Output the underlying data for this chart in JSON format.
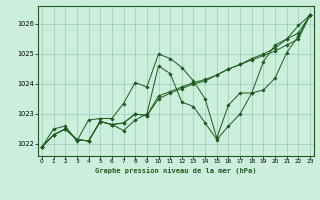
{
  "title": "Graphe pression niveau de la mer (hPa)",
  "background_color": "#cceedd",
  "grid_color": "#99ccbb",
  "line_color": "#1a5c1a",
  "x_ticks": [
    0,
    1,
    2,
    3,
    4,
    5,
    6,
    7,
    8,
    9,
    10,
    11,
    12,
    13,
    14,
    15,
    16,
    17,
    18,
    19,
    20,
    21,
    22,
    23
  ],
  "y_ticks": [
    1022,
    1023,
    1024,
    1025,
    1026
  ],
  "ylim": [
    1021.6,
    1026.6
  ],
  "xlim": [
    -0.3,
    23.3
  ],
  "series": [
    [
      1021.9,
      1022.5,
      1022.6,
      1022.1,
      1022.8,
      1022.85,
      1022.85,
      1023.35,
      1024.05,
      1023.9,
      1025.0,
      1024.85,
      1024.55,
      1024.1,
      1023.5,
      1022.2,
      1023.3,
      1023.7,
      1023.7,
      1024.75,
      1025.3,
      1025.5,
      1025.95,
      1026.3
    ],
    [
      1021.9,
      1022.3,
      1022.5,
      1022.15,
      1022.1,
      1022.75,
      1022.65,
      1022.7,
      1023.0,
      1022.95,
      1023.5,
      1023.7,
      1023.85,
      1024.0,
      1024.1,
      1024.3,
      1024.5,
      1024.65,
      1024.8,
      1024.95,
      1025.1,
      1025.3,
      1025.5,
      1026.3
    ],
    [
      1021.9,
      1022.3,
      1022.5,
      1022.15,
      1022.1,
      1022.75,
      1022.65,
      1022.7,
      1023.0,
      1022.95,
      1023.6,
      1023.75,
      1023.9,
      1024.05,
      1024.15,
      1024.3,
      1024.5,
      1024.65,
      1024.85,
      1025.0,
      1025.2,
      1025.5,
      1025.7,
      1026.3
    ],
    [
      1021.9,
      1022.3,
      1022.5,
      1022.15,
      1022.1,
      1022.75,
      1022.65,
      1022.45,
      1022.8,
      1023.0,
      1024.6,
      1024.35,
      1023.4,
      1023.25,
      1022.7,
      1022.15,
      1022.6,
      1023.0,
      1023.7,
      1023.8,
      1024.2,
      1025.05,
      1025.6,
      1026.3
    ]
  ]
}
